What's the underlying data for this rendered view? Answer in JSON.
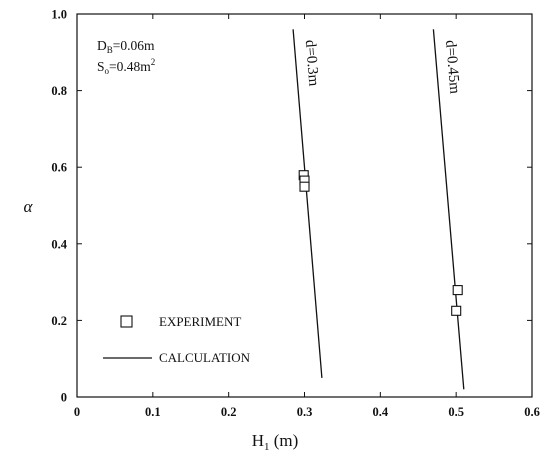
{
  "chart_data": {
    "type": "line",
    "xlabel": "H",
    "xlabel_sub": "1",
    "xlabel_unit": " (m)",
    "ylabel": "α",
    "xlim": [
      0,
      0.6
    ],
    "ylim": [
      0,
      1.0
    ],
    "xticks": [
      0,
      0.1,
      0.2,
      0.3,
      0.4,
      0.5,
      0.6
    ],
    "xtick_labels": [
      "0",
      "0.1",
      "0.2",
      "0.3",
      "0.4",
      "0.5",
      "0.6"
    ],
    "yticks": [
      0,
      0.2,
      0.4,
      0.6,
      0.8,
      1.0
    ],
    "ytick_labels": [
      "0",
      "0.2",
      "0.4",
      "0.6",
      "0.8",
      "1.0"
    ],
    "grid": false,
    "annotations": {
      "db_main": "D",
      "db_sub": "B",
      "db_value": "=0.06m",
      "so_main": "S",
      "so_sub": "o",
      "so_value": "=0.48m",
      "so_sup": "2"
    },
    "series": [
      {
        "name": "d=0.3m",
        "kind": "calculation",
        "x": [
          0.285,
          0.323
        ],
        "y": [
          0.96,
          0.05
        ]
      },
      {
        "name": "d=0.45m",
        "kind": "calculation",
        "x": [
          0.47,
          0.51
        ],
        "y": [
          0.96,
          0.02
        ]
      },
      {
        "name": "experiment",
        "kind": "experiment",
        "x": [
          0.299,
          0.3,
          0.3,
          0.502,
          0.5
        ],
        "y": [
          0.579,
          0.565,
          0.549,
          0.279,
          0.225
        ]
      }
    ],
    "legend": {
      "placement": "bottom-left",
      "experiment_label": "EXPERIMENT",
      "calculation_label": "CALCULATION"
    }
  }
}
